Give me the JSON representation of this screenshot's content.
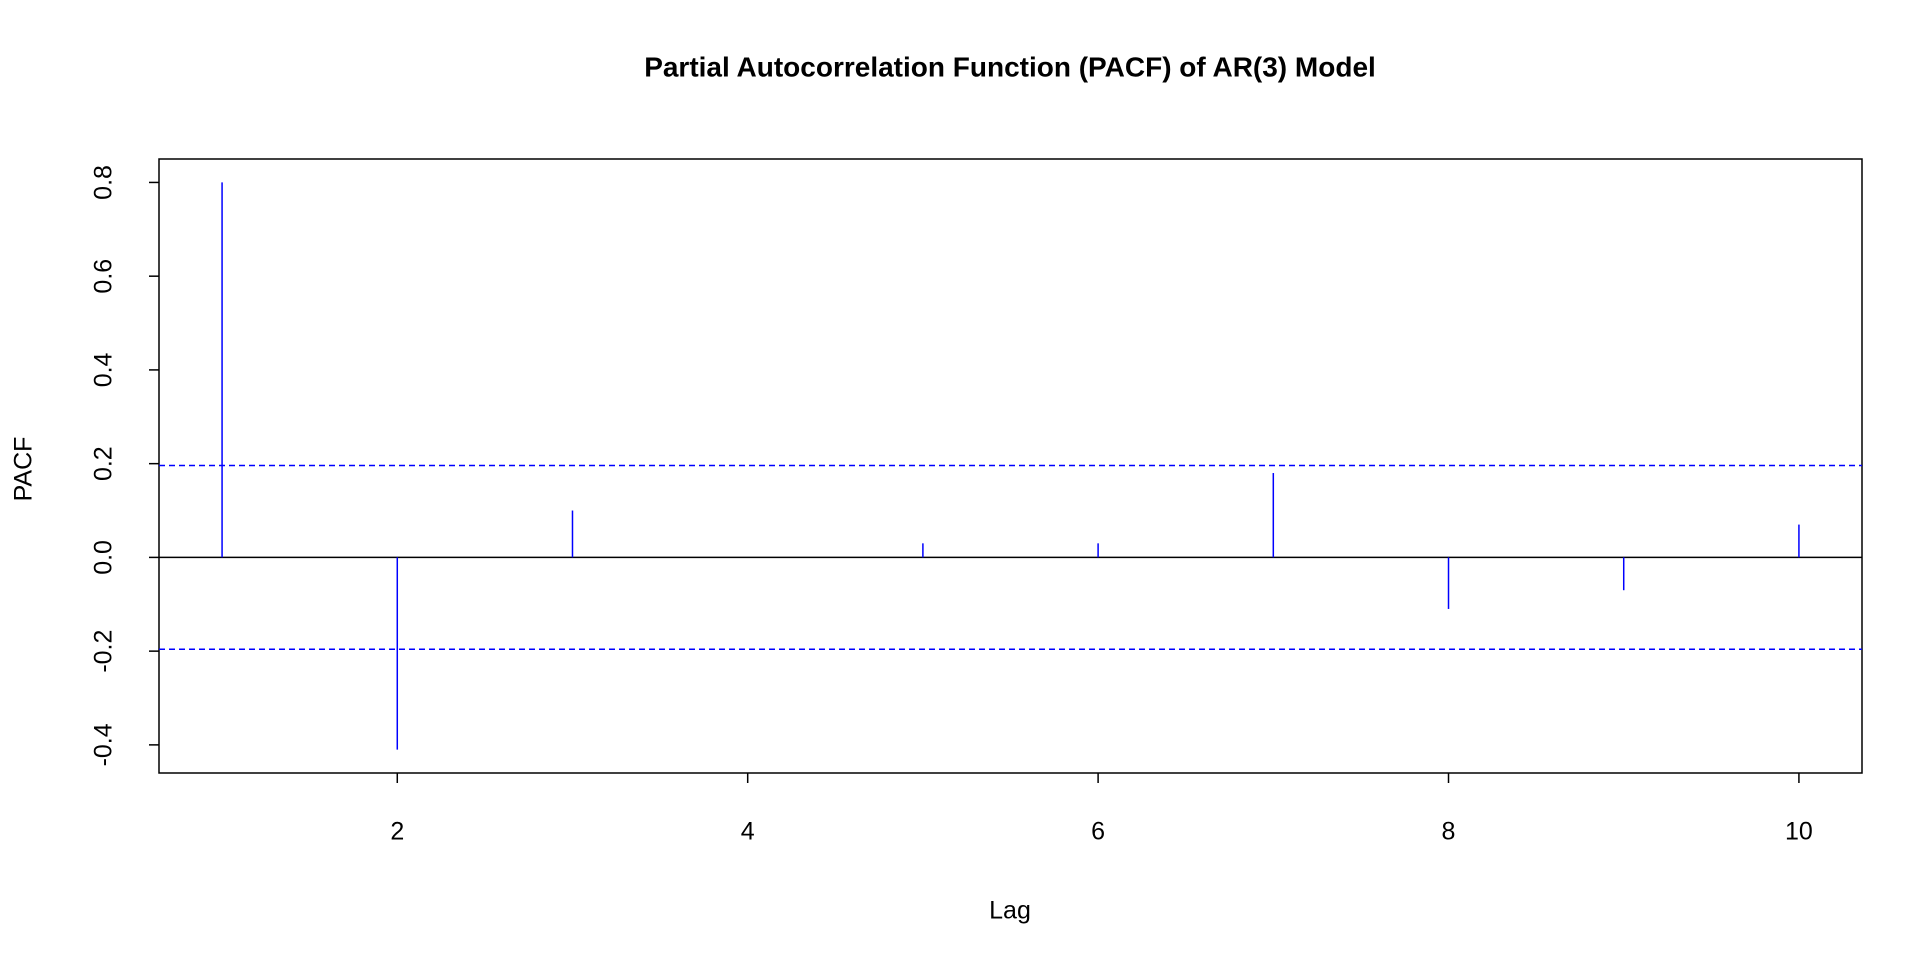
{
  "chart_data": {
    "type": "stem",
    "title": "Partial Autocorrelation Function (PACF) of AR(3) Model",
    "x_label": "Lag",
    "y_label": "PACF",
    "x": [
      1,
      2,
      3,
      4,
      5,
      6,
      7,
      8,
      9,
      10
    ],
    "values": [
      0.8,
      -0.41,
      0.1,
      0.0,
      0.03,
      0.03,
      0.18,
      -0.11,
      -0.07,
      0.07
    ],
    "color": "#0000ff",
    "confidence_bounds": [
      0.196,
      -0.196
    ],
    "xlim": [
      0.64,
      10.36
    ],
    "ylim": [
      -0.46,
      0.85
    ],
    "xticks": [
      2,
      4,
      6,
      8,
      10
    ],
    "yticks": [
      -0.4,
      -0.2,
      {
        "value": 0,
        "label": "0.0"
      },
      0.2,
      0.4,
      0.6,
      0.8
    ]
  }
}
